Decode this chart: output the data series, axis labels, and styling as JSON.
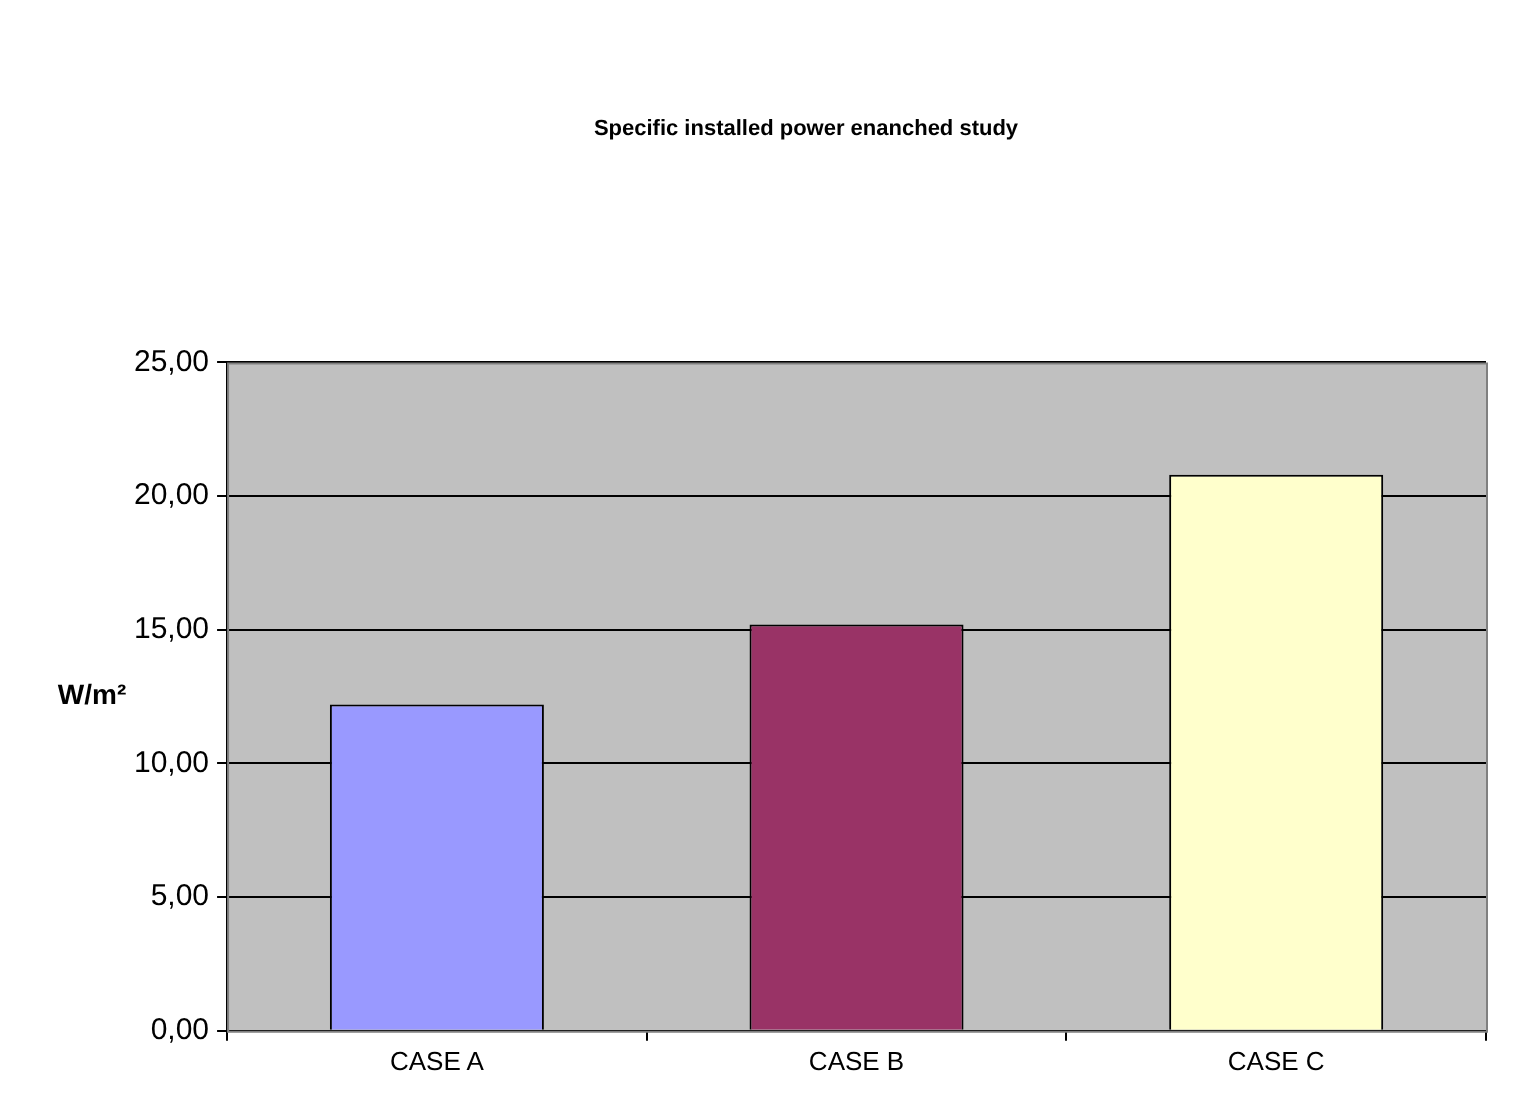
{
  "chart_data": {
    "type": "bar",
    "title": "Specific installed power enanched study",
    "ylabel": "W/m²",
    "categories": [
      "CASE A",
      "CASE B",
      "CASE C"
    ],
    "values": [
      12.2,
      15.2,
      20.8
    ],
    "colors": [
      "#9999ff",
      "#993366",
      "#ffffcc"
    ],
    "ylim": [
      0,
      25
    ],
    "yticks": [
      {
        "value": 0,
        "label": "0,00"
      },
      {
        "value": 5,
        "label": "5,00"
      },
      {
        "value": 10,
        "label": "10,00"
      },
      {
        "value": 15,
        "label": "15,00"
      },
      {
        "value": 20,
        "label": "20,00"
      },
      {
        "value": 25,
        "label": "25,00"
      }
    ],
    "grid": "y",
    "legend": false
  }
}
